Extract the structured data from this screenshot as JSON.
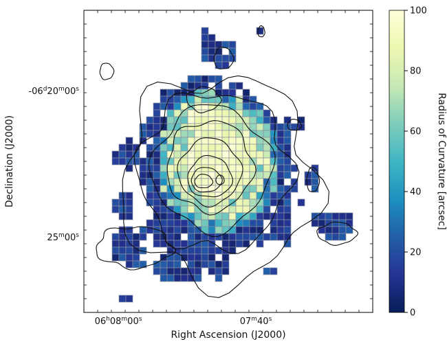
{
  "chart_data": {
    "type": "heatmap",
    "xlabel": "Right Ascension (J2000)",
    "ylabel": "Declination (J2000)",
    "colorbar_label": "Radius of Curvature [arcsec]",
    "colorbar_ticks": [
      "0",
      "20",
      "40",
      "60",
      "80",
      "100"
    ],
    "clim": [
      0,
      100
    ],
    "colormap": "YlGnBu_r",
    "colors": [
      "#081d58",
      "#253494",
      "#225ea8",
      "#1d91c0",
      "#41b6c4",
      "#7fcdbb",
      "#c7e9b4",
      "#edf8b1",
      "#ffffd9"
    ],
    "x_ticks": [
      {
        "main": "06",
        "sup1": "h",
        "mid": "08",
        "sup2": "m",
        "end": "00",
        "sup3": "s"
      },
      {
        "main": "07",
        "sup1": "m",
        "mid": "40",
        "sup2": "s",
        "end": "",
        "sup3": ""
      }
    ],
    "y_ticks": [
      {
        "main": "-06",
        "sup1": "d",
        "mid": "20",
        "sup2": "m",
        "end": "00",
        "sup3": "s"
      },
      {
        "main": "25",
        "sup1": "m",
        "mid": "00",
        "sup2": "s",
        "end": "",
        "sup3": ""
      }
    ]
  }
}
